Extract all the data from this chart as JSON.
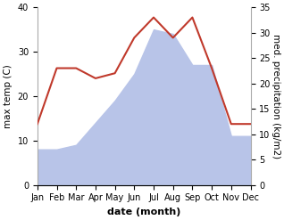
{
  "months": [
    "Jan",
    "Feb",
    "Mar",
    "Apr",
    "May",
    "Jun",
    "Jul",
    "Aug",
    "Sep",
    "Oct",
    "Nov",
    "Dec"
  ],
  "temp": [
    8,
    8,
    9,
    14,
    19,
    25,
    35,
    34,
    27,
    27,
    11,
    11
  ],
  "precip": [
    12,
    23,
    23,
    21,
    22,
    29,
    33,
    29,
    33,
    23,
    12,
    12
  ],
  "temp_fill_color": "#b8c4e8",
  "precip_line_color": "#c0392b",
  "temp_ylim": [
    0,
    40
  ],
  "precip_ylim": [
    0,
    35
  ],
  "temp_yticks": [
    0,
    10,
    20,
    30,
    40
  ],
  "precip_yticks": [
    0,
    5,
    10,
    15,
    20,
    25,
    30,
    35
  ],
  "xlabel": "date (month)",
  "ylabel_left": "max temp (C)",
  "ylabel_right": "med. precipitation (kg/m2)",
  "tick_fontsize": 7,
  "label_fontsize": 7.5,
  "xlabel_fontsize": 8,
  "spine_color": "#aaaaaa",
  "bg_color": "#ffffff"
}
